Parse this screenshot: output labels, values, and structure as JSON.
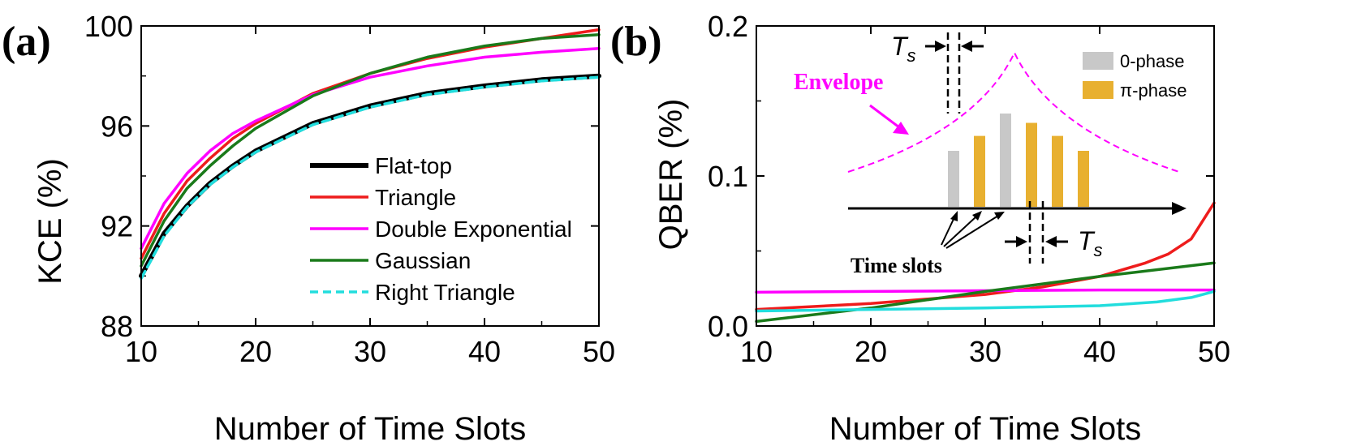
{
  "panels": [
    {
      "label": "(a)",
      "chart_data": {
        "type": "line",
        "title": "",
        "xlabel": "Number of Time Slots",
        "ylabel": "KCE (%)",
        "xlim": [
          10,
          50
        ],
        "ylim": [
          88,
          100
        ],
        "xticks": [
          10,
          20,
          30,
          40,
          50
        ],
        "yticks": [
          88,
          92,
          96,
          100
        ],
        "legend_position": "bottom-right",
        "series": [
          {
            "name": "Flat-top",
            "color": "#000000",
            "dash": "solid",
            "width": "thick",
            "x": [
              10,
              12,
              14,
              16,
              18,
              20,
              25,
              30,
              35,
              40,
              45,
              50
            ],
            "y": [
              90.0,
              91.7,
              92.8,
              93.7,
              94.4,
              95.0,
              96.1,
              96.8,
              97.3,
              97.6,
              97.85,
              98.0
            ]
          },
          {
            "name": "Triangle",
            "color": "#ee1c1c",
            "dash": "solid",
            "width": "normal",
            "x": [
              10,
              12,
              14,
              16,
              18,
              20,
              25,
              30,
              35,
              40,
              45,
              50
            ],
            "y": [
              90.7,
              92.5,
              93.8,
              94.7,
              95.5,
              96.1,
              97.3,
              98.1,
              98.7,
              99.15,
              99.5,
              99.85
            ]
          },
          {
            "name": "Double Exponential",
            "color": "#ff00ff",
            "dash": "solid",
            "width": "normal",
            "x": [
              10,
              12,
              14,
              16,
              18,
              20,
              25,
              30,
              35,
              40,
              45,
              50
            ],
            "y": [
              91.1,
              92.9,
              94.1,
              95.0,
              95.7,
              96.2,
              97.25,
              97.95,
              98.4,
              98.75,
              98.95,
              99.1
            ]
          },
          {
            "name": "Gaussian",
            "color": "#1a7a1a",
            "dash": "solid",
            "width": "normal",
            "x": [
              10,
              12,
              14,
              16,
              18,
              20,
              25,
              30,
              35,
              40,
              45,
              50
            ],
            "y": [
              90.4,
              92.2,
              93.5,
              94.4,
              95.2,
              95.9,
              97.2,
              98.1,
              98.75,
              99.2,
              99.5,
              99.65
            ]
          },
          {
            "name": "Right Triangle",
            "color": "#22dddd",
            "dash": "dashed",
            "width": "normal",
            "x": [
              10,
              12,
              14,
              16,
              18,
              20,
              25,
              30,
              35,
              40,
              45,
              50
            ],
            "y": [
              89.9,
              91.6,
              92.75,
              93.65,
              94.35,
              94.95,
              96.05,
              96.75,
              97.25,
              97.55,
              97.8,
              97.95
            ]
          }
        ]
      }
    },
    {
      "label": "(b)",
      "chart_data": {
        "type": "line",
        "title": "",
        "xlabel": "Number of Time Slots",
        "ylabel": "QBER (%)",
        "xlim": [
          10,
          50
        ],
        "ylim": [
          0,
          0.2
        ],
        "xticks": [
          10,
          20,
          30,
          40,
          50
        ],
        "yticks": [
          0.0,
          0.1,
          0.2
        ],
        "ytick_labels": [
          "0.0",
          "0.1",
          "0.2"
        ],
        "series": [
          {
            "name": "Triangle",
            "color": "#ee1c1c",
            "x": [
              10,
              20,
              30,
              35,
              40,
              44,
              46,
              48,
              50
            ],
            "y": [
              0.011,
              0.015,
              0.021,
              0.026,
              0.033,
              0.042,
              0.048,
              0.058,
              0.082
            ]
          },
          {
            "name": "Double Exponential",
            "color": "#ff00ff",
            "x": [
              10,
              20,
              30,
              40,
              50
            ],
            "y": [
              0.0225,
              0.023,
              0.0235,
              0.024,
              0.024
            ]
          },
          {
            "name": "Gaussian",
            "color": "#1a7a1a",
            "x": [
              10,
              20,
              30,
              40,
              50
            ],
            "y": [
              0.003,
              0.012,
              0.023,
              0.033,
              0.042
            ]
          },
          {
            "name": "Right Triangle",
            "color": "#22dddd",
            "x": [
              10,
              20,
              30,
              40,
              45,
              48,
              50
            ],
            "y": [
              0.01,
              0.011,
              0.012,
              0.0135,
              0.016,
              0.019,
              0.023
            ]
          }
        ]
      },
      "inset": {
        "envelope_label": "Envelope",
        "time_slots_label": "Time slots",
        "ts_label_main": "T",
        "ts_label_sub": "s",
        "legend": [
          {
            "label": "0-phase",
            "color": "#c8c8c8"
          },
          {
            "label": "π-phase",
            "color": "#e8b030"
          }
        ],
        "slot_phases": [
          "0",
          "π",
          "0",
          "π",
          "π",
          "π"
        ],
        "slot_heights": [
          0.6,
          0.76,
          1.0,
          0.9,
          0.76,
          0.6
        ],
        "envelope_color": "#ff00ff"
      }
    }
  ]
}
